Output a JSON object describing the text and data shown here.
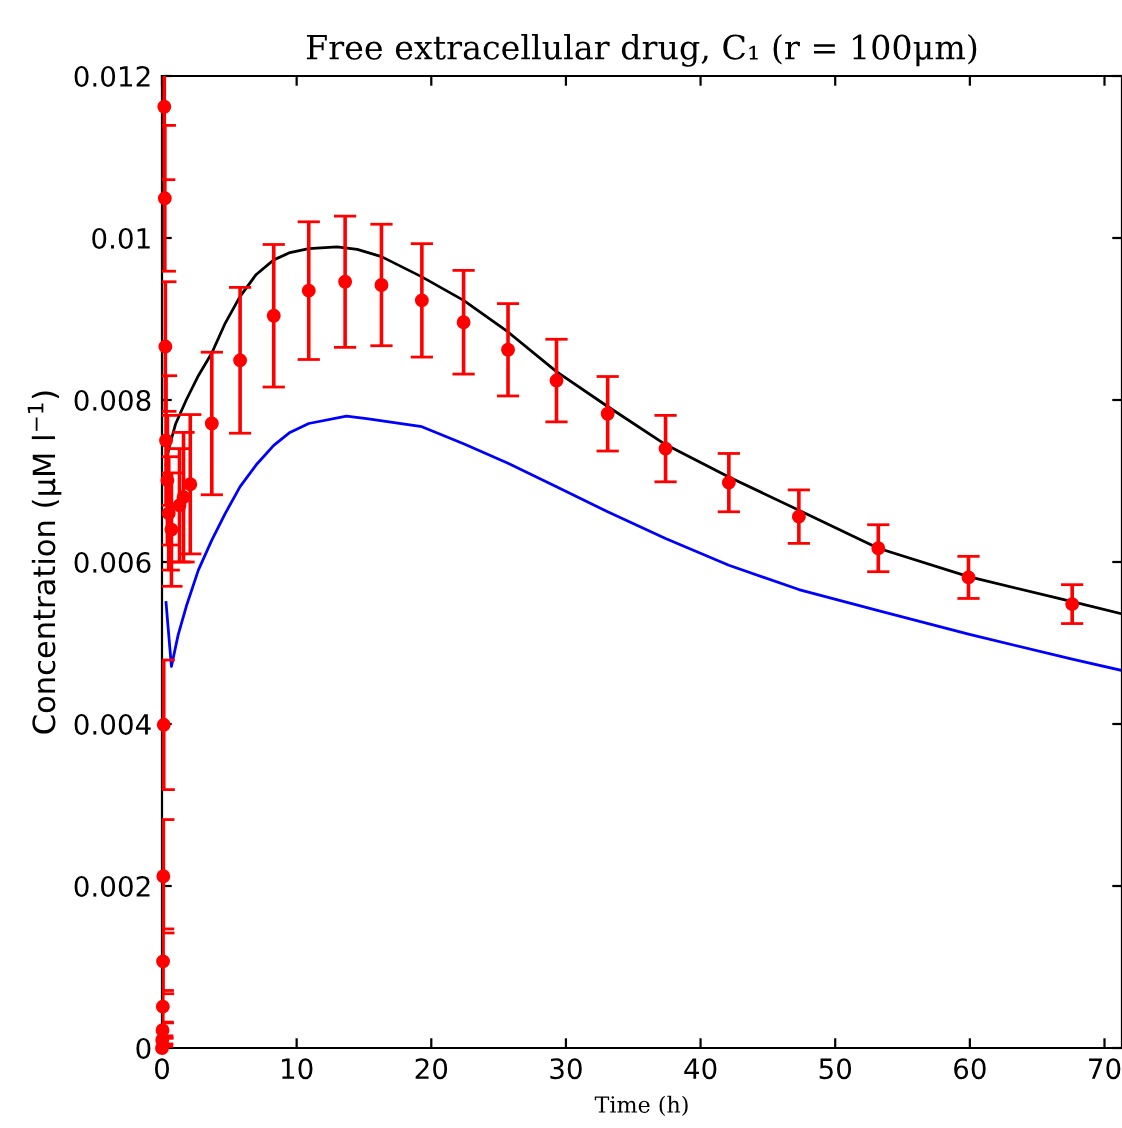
{
  "chart_data": {
    "type": "line",
    "title": "Free extracellular drug, C₁ (r = 100μm)",
    "xlabel": "Time (h)",
    "ylabel": "Concentration (μM l$^{−1}$)",
    "xlim": [
      0,
      71.3
    ],
    "xticks": [
      0,
      10,
      20,
      30,
      40,
      50,
      60,
      70
    ],
    "ylim": [
      0,
      0.012
    ],
    "yticks": [
      0,
      0.002,
      0.004,
      0.006,
      0.008,
      0.01,
      0.012
    ],
    "grid": false,
    "legend": false,
    "series": [
      {
        "color": "#000000",
        "marker": "none",
        "x": [
          0.3,
          0.5,
          1.0,
          1.8,
          2.7,
          3.7,
          4.7,
          5.8,
          7,
          8.3,
          9.5,
          10.9,
          13,
          14.5,
          16.3,
          19.3,
          22.4,
          25.7,
          29.3,
          33.1,
          37.4,
          42.1,
          47.3,
          53.2,
          59.9,
          67.6,
          71.3
        ],
        "values": [
          0.0072,
          0.0074,
          0.0077,
          0.008,
          0.0083,
          0.00858,
          0.00895,
          0.00928,
          0.00955,
          0.00973,
          0.00982,
          0.00987,
          0.00989,
          0.00986,
          0.00977,
          0.00952,
          0.00923,
          0.00884,
          0.00835,
          0.00792,
          0.00745,
          0.00705,
          0.00664,
          0.00617,
          0.00582,
          0.00551,
          0.00536
        ]
      },
      {
        "color": "#0000ff",
        "marker": "none",
        "x": [
          0.3,
          0.45,
          0.7,
          1.2,
          1.8,
          2.7,
          3.7,
          4.7,
          5.8,
          7,
          8.3,
          9.5,
          10.9,
          13.7,
          15.2,
          19.3,
          22.4,
          25.7,
          29.3,
          33.1,
          37.4,
          42.1,
          47.3,
          53.2,
          59.9,
          67.6,
          71.3
        ],
        "values": [
          0.0055,
          0.0052,
          0.00471,
          0.0051,
          0.00545,
          0.0059,
          0.00627,
          0.0066,
          0.00693,
          0.0072,
          0.00744,
          0.0076,
          0.00771,
          0.0078,
          0.00777,
          0.00767,
          0.00746,
          0.00722,
          0.00693,
          0.00662,
          0.00629,
          0.00596,
          0.00566,
          0.0054,
          0.00511,
          0.0048,
          0.00466
        ]
      },
      {
        "type": "scatter",
        "color": "#ff0000",
        "marker": "circle",
        "x": [
          0,
          0.02,
          0.04,
          0.06,
          0.08,
          0.1,
          0.13,
          0.17,
          0.21,
          0.25,
          0.3,
          0.4,
          0.5,
          0.7,
          1.3,
          1.6,
          2.1,
          3.7,
          5.8,
          8.3,
          10.9,
          13.6,
          16.3,
          19.3,
          22.4,
          25.7,
          29.3,
          33.1,
          37.4,
          42.1,
          47.3,
          53.2,
          59.9,
          67.6
        ],
        "values": [
          0,
          0.0001,
          0.00022,
          0.00051,
          0.00107,
          0.00212,
          0.00399,
          0.01162,
          0.01049,
          0.00866,
          0.0075,
          0.00701,
          0.0066,
          0.0064,
          0.0067,
          0.0068,
          0.00696,
          0.00771,
          0.00849,
          0.00904,
          0.00935,
          0.00946,
          0.00942,
          0.00923,
          0.00896,
          0.00862,
          0.00824,
          0.00783,
          0.0074,
          0.00698,
          0.00656,
          0.00617,
          0.00581,
          0.00548
        ],
        "errors": [
          2e-05,
          5e-05,
          0.0001,
          0.0002,
          0.0004,
          0.0007,
          0.0008,
          0.0009,
          0.0009,
          0.0008,
          0.0008,
          0.0008,
          0.0007,
          0.0007,
          0.0007,
          0.0008,
          0.00086,
          0.00088,
          0.0009,
          0.00088,
          0.00085,
          0.00081,
          0.00075,
          0.0007,
          0.00064,
          0.00057,
          0.00051,
          0.00046,
          0.00041,
          0.00036,
          0.00033,
          0.00029,
          0.00026,
          0.00024
        ]
      }
    ]
  }
}
